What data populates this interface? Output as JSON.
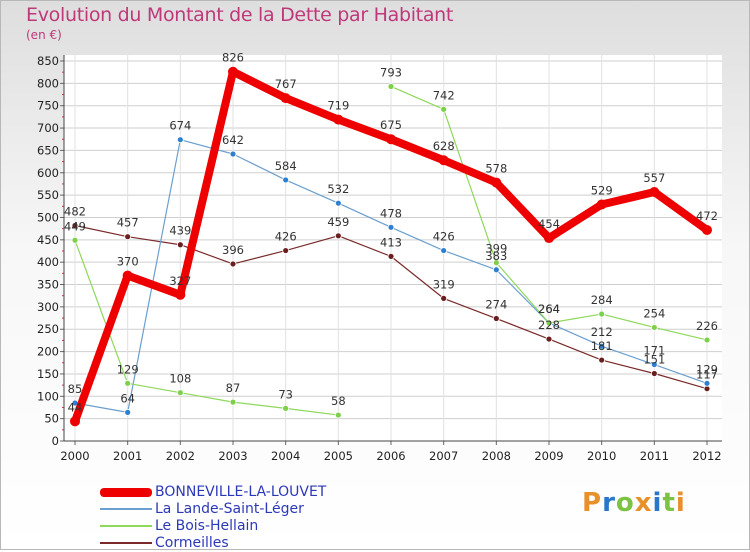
{
  "header": {
    "title": "Evolution du Montant de la Dette par Habitant",
    "unit": "(en €)"
  },
  "logo": {
    "text": "Proxiti",
    "colors": [
      "#e8902a",
      "#2a76c9",
      "#7dc242",
      "#e8902a",
      "#2a76c9",
      "#7dc242",
      "#e8902a"
    ]
  },
  "chart_data": {
    "type": "line",
    "title": "Evolution du Montant de la Dette par Habitant",
    "ylabel": "(en €)",
    "xlabel": "",
    "ylim": [
      0,
      850
    ],
    "yticks": [
      0,
      50,
      100,
      150,
      200,
      250,
      300,
      350,
      400,
      450,
      500,
      550,
      600,
      650,
      700,
      750,
      800,
      850
    ],
    "grid": true,
    "legend_position": "bottom-left",
    "categories": [
      "2000",
      "2001",
      "2002",
      "2003",
      "2004",
      "2005",
      "2006",
      "2007",
      "2008",
      "2009",
      "2010",
      "2011",
      "2012"
    ],
    "series": [
      {
        "name": "BONNEVILLE-LA-LOUVET",
        "color": "#ee0000",
        "width": 8,
        "marker": 5,
        "values": [
          44,
          370,
          327,
          826,
          767,
          719,
          675,
          628,
          578,
          454,
          529,
          557,
          472
        ],
        "labels": [
          "44",
          "370",
          "327",
          "826",
          "767",
          "719",
          "675",
          "628",
          "578",
          "454",
          "529",
          "557",
          "472"
        ]
      },
      {
        "name": "La Lande-Saint-Léger",
        "color": "#6a9fd0",
        "width": 1.2,
        "marker": 3,
        "markerFill": "#2f7fd0",
        "values": [
          85,
          64,
          674,
          642,
          584,
          532,
          478,
          426,
          383,
          264,
          212,
          171,
          129
        ],
        "labels": [
          "85",
          "64",
          "674",
          "642",
          "584",
          "532",
          "478",
          "426",
          "383",
          "264",
          "212",
          "171",
          "129"
        ]
      },
      {
        "name": "Le Bois-Hellain",
        "color": "#8ed85a",
        "width": 1.2,
        "marker": 3,
        "markerFill": "#7dd04a",
        "values": [
          449,
          129,
          108,
          87,
          73,
          58,
          793,
          742,
          399,
          264,
          284,
          254,
          226
        ],
        "labels": [
          "449",
          "129",
          "108",
          "87",
          "73",
          "58",
          "793",
          "742",
          "399",
          "264",
          "284",
          "254",
          "226"
        ],
        "breaks_after": [
          5
        ]
      },
      {
        "name": "Cormeilles",
        "color": "#7a2a2a",
        "width": 1.2,
        "marker": 3,
        "markerFill": "#6a1f1f",
        "values": [
          482,
          457,
          439,
          396,
          426,
          459,
          413,
          319,
          274,
          228,
          181,
          151,
          117
        ],
        "labels": [
          "482",
          "457",
          "439",
          "396",
          "426",
          "459",
          "413",
          "319",
          "274",
          "228",
          "181",
          "151",
          "117"
        ]
      }
    ]
  }
}
